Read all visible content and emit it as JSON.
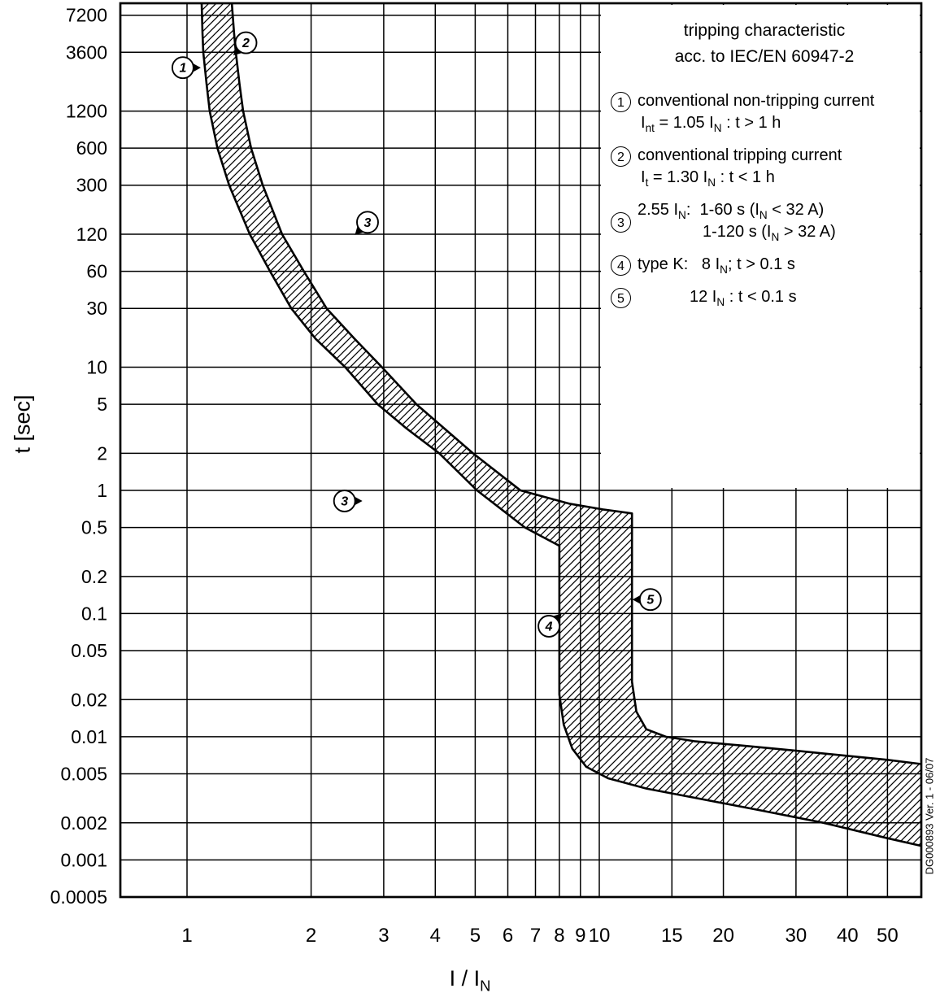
{
  "chart_data": {
    "type": "area",
    "title": "tripping characteristic acc. to IEC/EN 60947-2",
    "xlabel": "I / I_{N}",
    "ylabel": "t [sec]",
    "x_scale": "log",
    "y_scale": "log",
    "xlim": [
      0.689,
      60.4
    ],
    "ylim": [
      0.0005,
      9000
    ],
    "grid": "on",
    "legend_position": "top-right",
    "x_ticks": [
      1,
      2,
      3,
      4,
      5,
      6,
      7,
      8,
      9,
      10,
      15,
      20,
      30,
      40,
      50
    ],
    "y_ticks": [
      7200,
      3600,
      1200,
      600,
      300,
      120,
      60,
      30,
      10,
      5,
      2,
      1,
      0.5,
      0.2,
      0.1,
      0.05,
      0.02,
      0.01,
      0.005,
      0.002,
      0.001,
      0.0005
    ],
    "band": {
      "upper": [
        [
          1.284,
          9000
        ],
        [
          1.3,
          5200
        ],
        [
          1.313,
          3600
        ],
        [
          1.34,
          2000
        ],
        [
          1.368,
          1200
        ],
        [
          1.43,
          600
        ],
        [
          1.526,
          300
        ],
        [
          1.7,
          120
        ],
        [
          1.92,
          60
        ],
        [
          2.18,
          30
        ],
        [
          2.55,
          17
        ],
        [
          2.97,
          10
        ],
        [
          3.6,
          5
        ],
        [
          4.2,
          3.2
        ],
        [
          4.94,
          2
        ],
        [
          6.44,
          1
        ],
        [
          8.45,
          0.78
        ],
        [
          10.2,
          0.7
        ],
        [
          12.0,
          0.65
        ],
        [
          12.0,
          0.028
        ],
        [
          12.3,
          0.016
        ],
        [
          13.0,
          0.0115
        ],
        [
          14.5,
          0.01
        ],
        [
          17,
          0.0092
        ],
        [
          22,
          0.0085
        ],
        [
          30,
          0.0077
        ],
        [
          40,
          0.007
        ],
        [
          50,
          0.0065
        ],
        [
          60.4,
          0.006
        ]
      ],
      "lower": [
        [
          1.085,
          9000
        ],
        [
          1.09,
          5200
        ],
        [
          1.095,
          3600
        ],
        [
          1.115,
          2000
        ],
        [
          1.135,
          1200
        ],
        [
          1.185,
          600
        ],
        [
          1.265,
          300
        ],
        [
          1.42,
          120
        ],
        [
          1.59,
          60
        ],
        [
          1.79,
          30
        ],
        [
          2.05,
          17
        ],
        [
          2.42,
          10
        ],
        [
          2.9,
          5
        ],
        [
          3.4,
          3.2
        ],
        [
          4.09,
          2
        ],
        [
          5.05,
          1
        ],
        [
          6.6,
          0.5
        ],
        [
          8.0,
          0.355
        ],
        [
          8.0,
          0.022
        ],
        [
          8.2,
          0.0125
        ],
        [
          8.6,
          0.008
        ],
        [
          9.3,
          0.0057
        ],
        [
          10.5,
          0.0046
        ],
        [
          13,
          0.0038
        ],
        [
          17,
          0.0032
        ],
        [
          25,
          0.0025
        ],
        [
          35,
          0.002
        ],
        [
          50,
          0.0015
        ],
        [
          60.4,
          0.0013
        ]
      ]
    },
    "markers": [
      {
        "label": "1",
        "i": 0.977,
        "t": 2700,
        "pointer": "e"
      },
      {
        "label": "2",
        "i": 1.39,
        "t": 4300,
        "pointer": "sw"
      },
      {
        "label": "3",
        "i": 2.74,
        "t": 150,
        "pointer": "sw"
      },
      {
        "label": "3",
        "i": 2.41,
        "t": 0.82,
        "pointer": "e"
      },
      {
        "label": "4",
        "i": 7.55,
        "t": 0.079,
        "pointer": "ne"
      },
      {
        "label": "5",
        "i": 13.3,
        "t": 0.13,
        "pointer": "w"
      }
    ]
  },
  "legend": {
    "title_lines": [
      "tripping characteristic",
      "acc. to IEC/EN 60947-2"
    ],
    "items": [
      {
        "num": "1",
        "lines": [
          {
            "text": "conventional non-tripping current",
            "ind": 0
          },
          {
            "text": "I_{nt} = 1.05 I_{N} : t > 1 h",
            "ind": 4
          }
        ]
      },
      {
        "num": "2",
        "lines": [
          {
            "text": "conventional tripping current",
            "ind": 0
          },
          {
            "text": "I_{t} = 1.30 I_{N} : t < 1 h",
            "ind": 4
          }
        ]
      },
      {
        "num": "3",
        "lines": [
          {
            "text": "2.55 I_{N}:  1-60 s (I_{N} < 32 A)",
            "ind": 0
          },
          {
            "text": "1-120 s (I_{N} > 32 A)",
            "ind": 80
          }
        ]
      },
      {
        "num": "4",
        "lines": [
          {
            "text": "type K:   8 I_{N}; t > 0.1 s",
            "ind": 0
          }
        ]
      },
      {
        "num": "5",
        "lines": [
          {
            "text": "12 I_{N} : t < 0.1 s",
            "ind": 64
          }
        ]
      }
    ]
  },
  "side_label": "DG000893 Ver. 1 - 06/07"
}
